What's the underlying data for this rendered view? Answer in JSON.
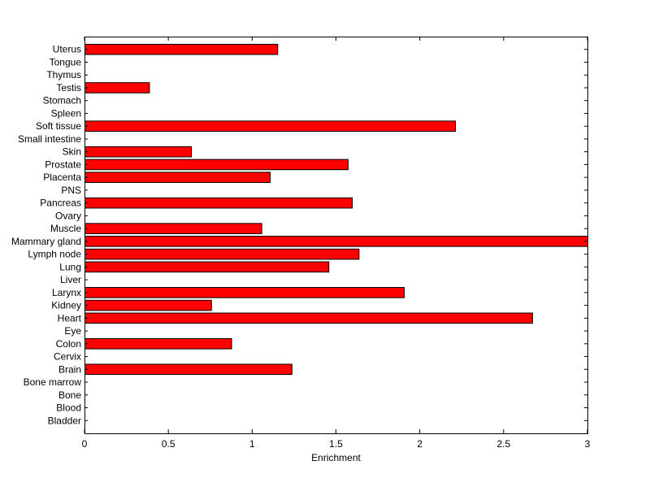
{
  "chart_data": {
    "type": "bar",
    "orientation": "horizontal",
    "title": "",
    "xlabel": "Enrichment",
    "ylabel": "",
    "xlim": [
      0,
      3
    ],
    "xticks": [
      0,
      0.5,
      1,
      1.5,
      2,
      2.5,
      3
    ],
    "xtick_labels": [
      "0",
      "0.5",
      "1",
      "1.5",
      "2",
      "2.5",
      "3"
    ],
    "grid": false,
    "legend": "none",
    "bar_color": "#ff0000",
    "bar_edge_color": "#000000",
    "categories": [
      "Uterus",
      "Tongue",
      "Thymus",
      "Testis",
      "Stomach",
      "Spleen",
      "Soft tissue",
      "Small intestine",
      "Skin",
      "Prostate",
      "Placenta",
      "PNS",
      "Pancreas",
      "Ovary",
      "Muscle",
      "Mammary gland",
      "Lymph node",
      "Lung",
      "Liver",
      "Larynx",
      "Kidney",
      "Heart",
      "Eye",
      "Colon",
      "Cervix",
      "Brain",
      "Bone marrow",
      "Bone",
      "Blood",
      "Bladder"
    ],
    "values": [
      1.15,
      0,
      0,
      0.385,
      0,
      0,
      2.21,
      0,
      0.635,
      1.57,
      1.105,
      0,
      1.595,
      0,
      1.055,
      3.0,
      1.635,
      1.455,
      0,
      1.905,
      0.755,
      2.67,
      0,
      0.875,
      0,
      1.235,
      0,
      0,
      0,
      0
    ]
  }
}
